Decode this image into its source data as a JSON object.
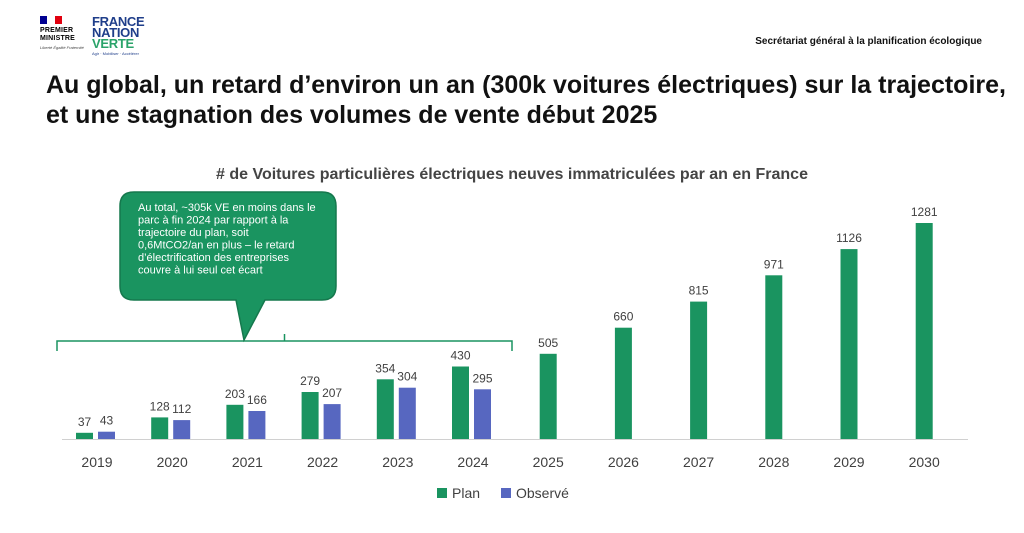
{
  "header": {
    "rf_name_lines": [
      "PREMIER",
      "MINISTRE"
    ],
    "rf_motto": "Liberté Égalité Fraternité",
    "fnv_lines": [
      "FRANCE",
      "NATION",
      "VERTE"
    ],
    "fnv_tagline": "Agir · Mobiliser · Accélérer",
    "secretariat": "Secrétariat général à la planification écologique"
  },
  "headline": "Au global, un retard d’environ un an (300k voitures électriques) sur la trajectoire, et une stagnation des volumes de vente début 2025",
  "callout": {
    "text": "Au total, ~305k VE en moins dans le parc à fin 2024 par rapport à la trajectoire du plan, soit 0,6MtCO2/an en plus – le retard d’électrification des entreprises couvre à lui seul cet écart"
  },
  "colors": {
    "plan": "#1a9460",
    "observe": "#5767c0",
    "callout_bg": "#1a9460",
    "callout_border": "#15784d",
    "bracket": "#1a9460",
    "axis": "#d0d0d0",
    "label": "#404040",
    "flag_blue": "#000091",
    "flag_red": "#e1000f",
    "fnv_blue": "#1f3e8a",
    "fnv_green": "#2aa36a"
  },
  "chart_data": {
    "type": "bar",
    "title": "# de Voitures particulières électriques neuves immatriculées par an en France",
    "categories": [
      "2019",
      "2020",
      "2021",
      "2022",
      "2023",
      "2024",
      "2025",
      "2026",
      "2027",
      "2028",
      "2029",
      "2030"
    ],
    "series": [
      {
        "name": "Plan",
        "values": [
          37,
          128,
          203,
          279,
          354,
          430,
          505,
          660,
          815,
          971,
          1126,
          1281
        ]
      },
      {
        "name": "Observé",
        "values": [
          43,
          112,
          166,
          207,
          304,
          295,
          null,
          null,
          null,
          null,
          null,
          null
        ]
      }
    ],
    "ylim": [
      0,
      1300
    ],
    "legend": "bottom"
  }
}
